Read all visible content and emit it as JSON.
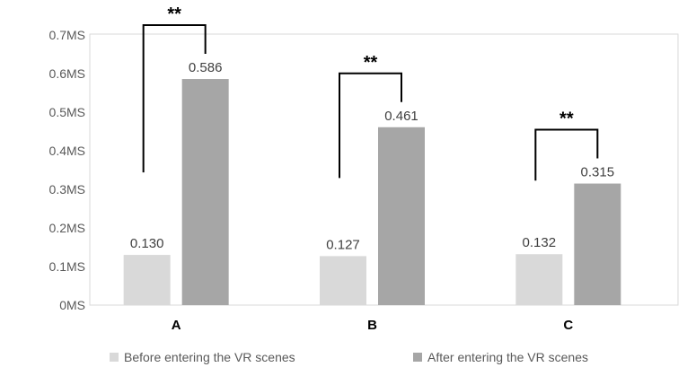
{
  "chart_data": {
    "type": "bar",
    "categories": [
      "A",
      "B",
      "C"
    ],
    "series": [
      {
        "name": "Before entering the VR scenes",
        "values": [
          0.13,
          0.127,
          0.132
        ],
        "labels": [
          "0.130",
          "0.127",
          "0.132"
        ],
        "color": "#d9d9d9"
      },
      {
        "name": "After entering the VR scenes",
        "values": [
          0.586,
          0.461,
          0.315
        ],
        "labels": [
          "0.586",
          "0.461",
          "0.315"
        ],
        "color": "#a6a6a6"
      }
    ],
    "y_ticks": [
      0,
      0.1,
      0.2,
      0.3,
      0.4,
      0.5,
      0.6,
      0.7
    ],
    "y_tick_labels": [
      "0MS",
      "0.1MS",
      "0.2MS",
      "0.3MS",
      "0.4MS",
      "0.5MS",
      "0.6MS",
      "0.7MS"
    ],
    "ylim": [
      0,
      0.7
    ],
    "grid": false,
    "legend_position": "bottom",
    "significance": [
      {
        "category": "A",
        "label": "**"
      },
      {
        "category": "B",
        "label": "**"
      },
      {
        "category": "C",
        "label": "**"
      }
    ],
    "colors": {
      "plot_border": "#d9d9d9",
      "bracket": "#000000"
    }
  }
}
